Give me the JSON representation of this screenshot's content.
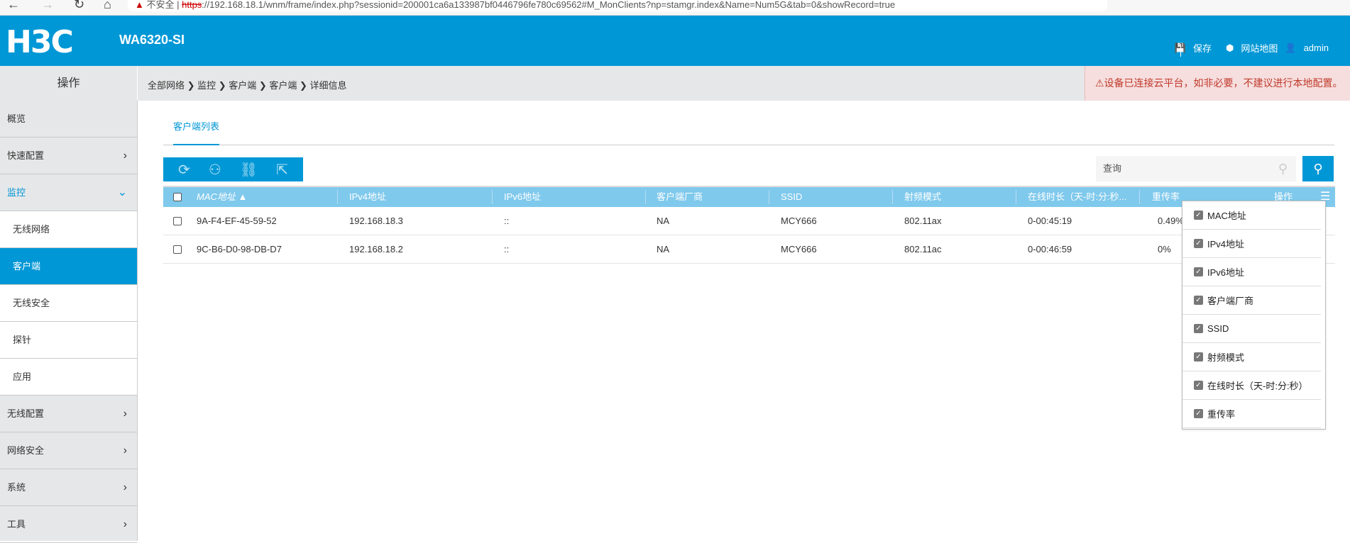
{
  "browser": {
    "security": "不安全",
    "url_scheme": "https",
    "url_rest": "://192.168.18.1/wnm/frame/index.php?sessionid=200001ca6a133987bf044679​6fe780c69562#M_MonClients?np=stamgr.index&Name=Num5G&tab=0&showRecord=true"
  },
  "header": {
    "logo": "H3C",
    "model": "WA6320-SI",
    "save": "保存",
    "sitemap": "网站地图",
    "user": "admin"
  },
  "colors": {
    "brand": "#0097d6",
    "table_header": "#7fc9ec",
    "warning": "#c0392b"
  },
  "breadcrumb": {
    "ops_label": "操作",
    "path": "全部网络 ❯ 监控 ❯ 客户端 ❯ 客户端 ❯ 详细信息",
    "warning": "⚠设备已连接云平台，如非必要，不建议进行本地配置。"
  },
  "sidebar": {
    "items": [
      {
        "label": "概览"
      },
      {
        "label": "快速配置",
        "chevron": "›"
      },
      {
        "label": "监控",
        "chevron": "⌄"
      },
      {
        "label": "无线网络"
      },
      {
        "label": "客户端"
      },
      {
        "label": "无线安全"
      },
      {
        "label": "探针"
      },
      {
        "label": "应用"
      },
      {
        "label": "无线配置",
        "chevron": "›"
      },
      {
        "label": "网络安全",
        "chevron": "›"
      },
      {
        "label": "系统",
        "chevron": "›"
      },
      {
        "label": "工具",
        "chevron": "›"
      }
    ]
  },
  "main": {
    "tab": "客户端列表",
    "search_placeholder": "查询",
    "columns": [
      "MAC地址 ▲",
      "IPv4地址",
      "IPv6地址",
      "客户端厂商",
      "SSID",
      "射频模式",
      "在线时长（天-时:分:秒...",
      "重传率",
      "操作"
    ],
    "rows": [
      [
        "9A-F4-EF-45-59-52",
        "192.168.18.3",
        "::",
        "NA",
        "MCY666",
        "802.11ax",
        "0-00:45:19",
        "0.49%"
      ],
      [
        "9C-B6-D0-98-DB-D7",
        "192.168.18.2",
        "::",
        "NA",
        "MCY666",
        "802.11ac",
        "0-00:46:59",
        "0%"
      ]
    ],
    "column_menu": [
      "MAC地址",
      "IPv4地址",
      "IPv6地址",
      "客户端厂商",
      "SSID",
      "射频模式",
      "在线时长（天-时:分:秒）",
      "重传率"
    ]
  }
}
